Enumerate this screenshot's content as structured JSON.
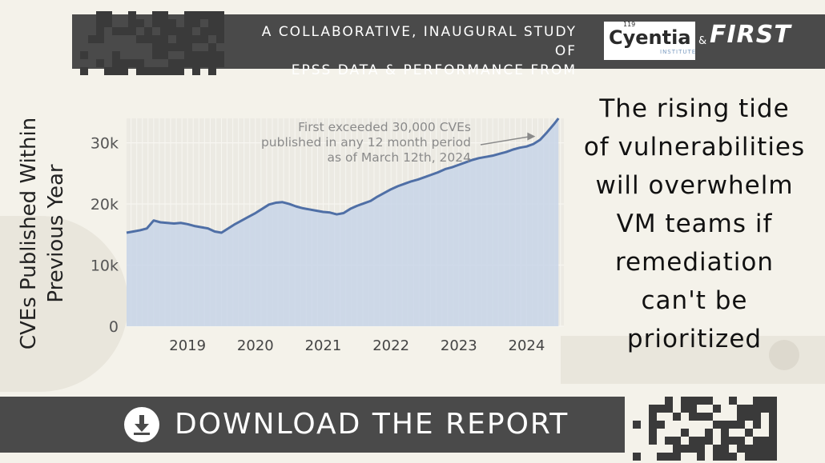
{
  "banner": {
    "line1": "A COLLABORATIVE, INAUGURAL STUDY OF",
    "line2": "EPSS DATA & PERFORMANCE  FROM",
    "cyentia_name": "Cyentia",
    "cyentia_sub": "INSTITUTE",
    "cyentia_number": "119",
    "amp": "&",
    "first_logo": "FIRST"
  },
  "headline": "The rising tide of vulnerabilities will overwhelm VM teams if remediation can't be prioritized",
  "headline_lines": [
    "The rising tide",
    "of vulnerabilities",
    "will overwhelm",
    "VM teams if",
    "remediation",
    "can't be",
    "prioritized"
  ],
  "download": {
    "label": "DOWNLOAD THE REPORT",
    "icon": "download-arrow-icon"
  },
  "colors": {
    "banner": "#4a4a4a",
    "line": "#4f6fa6",
    "fill": "#c8d5e7",
    "background": "#f4f2ea",
    "annotation": "#8a8a8a"
  },
  "chart_data": {
    "type": "area",
    "ylabel": "CVEs Published Within Previous Year",
    "ylabel_lines": [
      "CVEs Published Within",
      "Previous Year"
    ],
    "xlabel": "",
    "ylim": [
      0,
      34000
    ],
    "xlim": [
      2018.1,
      2024.55
    ],
    "yticks": [
      {
        "value": 0,
        "label": "0"
      },
      {
        "value": 10000,
        "label": "10k"
      },
      {
        "value": 20000,
        "label": "20k"
      },
      {
        "value": 30000,
        "label": "30k"
      }
    ],
    "xticks": [
      {
        "value": 2019,
        "label": "2019"
      },
      {
        "value": 2020,
        "label": "2020"
      },
      {
        "value": 2021,
        "label": "2021"
      },
      {
        "value": 2022,
        "label": "2022"
      },
      {
        "value": 2023,
        "label": "2023"
      },
      {
        "value": 2024,
        "label": "2024"
      }
    ],
    "series": [
      {
        "points": [
          [
            2018.1,
            15300
          ],
          [
            2018.2,
            15500
          ],
          [
            2018.3,
            15700
          ],
          [
            2018.4,
            16000
          ],
          [
            2018.5,
            17300
          ],
          [
            2018.6,
            17000
          ],
          [
            2018.7,
            16900
          ],
          [
            2018.8,
            16800
          ],
          [
            2018.9,
            16900
          ],
          [
            2019.0,
            16700
          ],
          [
            2019.1,
            16400
          ],
          [
            2019.2,
            16200
          ],
          [
            2019.3,
            16000
          ],
          [
            2019.4,
            15500
          ],
          [
            2019.5,
            15300
          ],
          [
            2019.6,
            16000
          ],
          [
            2019.7,
            16700
          ],
          [
            2019.8,
            17300
          ],
          [
            2019.9,
            17900
          ],
          [
            2020.0,
            18500
          ],
          [
            2020.1,
            19200
          ],
          [
            2020.2,
            19900
          ],
          [
            2020.3,
            20200
          ],
          [
            2020.4,
            20300
          ],
          [
            2020.5,
            20000
          ],
          [
            2020.6,
            19600
          ],
          [
            2020.7,
            19300
          ],
          [
            2020.8,
            19100
          ],
          [
            2020.9,
            18900
          ],
          [
            2021.0,
            18700
          ],
          [
            2021.1,
            18600
          ],
          [
            2021.2,
            18300
          ],
          [
            2021.3,
            18500
          ],
          [
            2021.4,
            19200
          ],
          [
            2021.5,
            19700
          ],
          [
            2021.6,
            20100
          ],
          [
            2021.7,
            20500
          ],
          [
            2021.8,
            21200
          ],
          [
            2021.9,
            21800
          ],
          [
            2022.0,
            22400
          ],
          [
            2022.1,
            22900
          ],
          [
            2022.2,
            23300
          ],
          [
            2022.3,
            23700
          ],
          [
            2022.4,
            24000
          ],
          [
            2022.5,
            24400
          ],
          [
            2022.6,
            24800
          ],
          [
            2022.7,
            25200
          ],
          [
            2022.8,
            25700
          ],
          [
            2022.9,
            26000
          ],
          [
            2023.0,
            26400
          ],
          [
            2023.1,
            26800
          ],
          [
            2023.2,
            27200
          ],
          [
            2023.3,
            27500
          ],
          [
            2023.4,
            27700
          ],
          [
            2023.5,
            27900
          ],
          [
            2023.6,
            28200
          ],
          [
            2023.7,
            28500
          ],
          [
            2023.8,
            28900
          ],
          [
            2023.9,
            29200
          ],
          [
            2024.0,
            29400
          ],
          [
            2024.1,
            29800
          ],
          [
            2024.2,
            30500
          ],
          [
            2024.3,
            31700
          ],
          [
            2024.4,
            33000
          ],
          [
            2024.47,
            34000
          ]
        ]
      }
    ],
    "annotation": {
      "lines": [
        "First exceeded 30,000 CVEs",
        "published in any 12 month period",
        "as of March 12th, 2024"
      ],
      "point": [
        2024.2,
        30000
      ]
    },
    "grid": true,
    "legend": "none"
  }
}
